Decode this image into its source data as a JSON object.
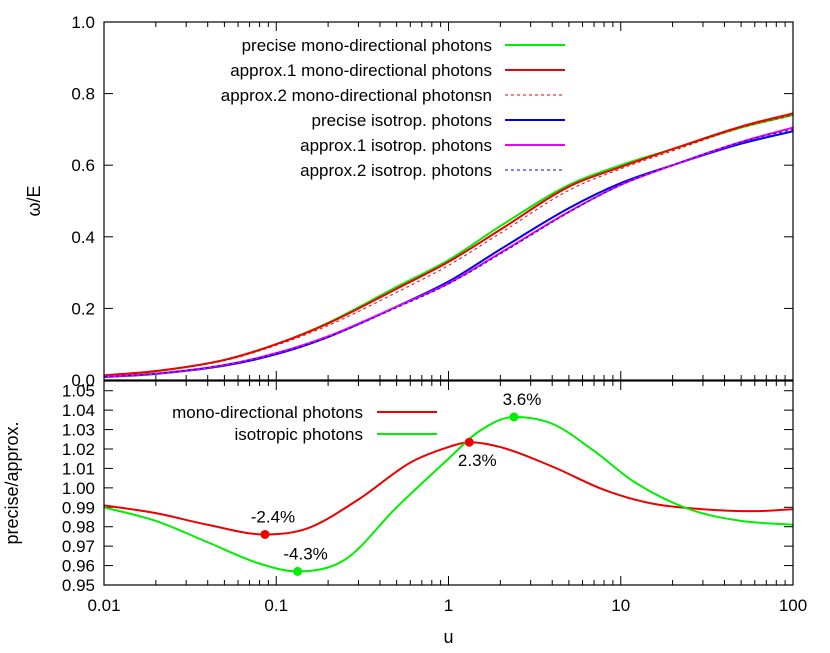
{
  "chart_data": [
    {
      "type": "line",
      "xscale": "log",
      "xlim": [
        0.01,
        100
      ],
      "ylim": [
        0.0,
        1.0
      ],
      "ylabel": "ω/E",
      "xlabel": "",
      "grid": false,
      "legend_placement": "top-left",
      "yticks": [
        "0.0",
        "0.2",
        "0.4",
        "0.6",
        "0.8",
        "1.0"
      ],
      "series": [
        {
          "name": "precise mono-directional photons",
          "color": "#00ee00",
          "dash": "solid",
          "x": [
            0.01,
            0.02,
            0.05,
            0.1,
            0.2,
            0.5,
            1,
            2,
            5,
            10,
            20,
            50,
            100
          ],
          "y": [
            0.012,
            0.024,
            0.056,
            0.1,
            0.16,
            0.26,
            0.335,
            0.43,
            0.545,
            0.6,
            0.645,
            0.705,
            0.74
          ]
        },
        {
          "name": "approx.1 mono-directional photons",
          "color": "#ee0000",
          "dash": "solid",
          "x": [
            0.01,
            0.02,
            0.05,
            0.1,
            0.2,
            0.5,
            1,
            2,
            5,
            10,
            20,
            50,
            100
          ],
          "y": [
            0.013,
            0.025,
            0.056,
            0.1,
            0.158,
            0.255,
            0.33,
            0.42,
            0.54,
            0.595,
            0.645,
            0.708,
            0.745
          ]
        },
        {
          "name": "approx.2 mono-directional photonsn",
          "color": "#ee0000",
          "dash": "dotted",
          "x": [
            0.01,
            0.02,
            0.05,
            0.1,
            0.2,
            0.5,
            1,
            2,
            5,
            10,
            20,
            50,
            100
          ],
          "y": [
            0.013,
            0.025,
            0.054,
            0.097,
            0.152,
            0.245,
            0.32,
            0.41,
            0.53,
            0.59,
            0.64,
            0.705,
            0.74
          ]
        },
        {
          "name": "precise isotrop. photons",
          "color": "#0000ee",
          "dash": "solid",
          "x": [
            0.01,
            0.02,
            0.05,
            0.1,
            0.2,
            0.5,
            1,
            2,
            5,
            10,
            20,
            50,
            100
          ],
          "y": [
            0.008,
            0.017,
            0.04,
            0.072,
            0.12,
            0.205,
            0.275,
            0.365,
            0.48,
            0.55,
            0.6,
            0.66,
            0.695
          ]
        },
        {
          "name": "approx.1 isotrop. photons",
          "color": "#ee00ee",
          "dash": "solid",
          "x": [
            0.01,
            0.02,
            0.05,
            0.1,
            0.2,
            0.5,
            1,
            2,
            5,
            10,
            20,
            50,
            100
          ],
          "y": [
            0.009,
            0.018,
            0.042,
            0.075,
            0.122,
            0.205,
            0.27,
            0.355,
            0.47,
            0.545,
            0.6,
            0.665,
            0.705
          ]
        },
        {
          "name": "approx.2 isotrop. photons",
          "color": "#0000ee",
          "dash": "dotted",
          "x": [
            0.01,
            0.02,
            0.05,
            0.1,
            0.2,
            0.5,
            1,
            2,
            5,
            10,
            20,
            50,
            100
          ],
          "y": [
            0.009,
            0.018,
            0.042,
            0.074,
            0.12,
            0.202,
            0.268,
            0.352,
            0.468,
            0.545,
            0.6,
            0.665,
            0.7
          ]
        }
      ]
    },
    {
      "type": "line",
      "xscale": "log",
      "xlim": [
        0.01,
        100
      ],
      "ylim": [
        0.95,
        1.055
      ],
      "xlabel": "u",
      "ylabel": "precise/approx.",
      "grid": false,
      "legend_placement": "top-left",
      "xticks": [
        "0.01",
        "0.1",
        "1",
        "10",
        "100"
      ],
      "yticks": [
        "0.95",
        "0.96",
        "0.97",
        "0.98",
        "0.99",
        "1.00",
        "1.01",
        "1.02",
        "1.03",
        "1.04",
        "1.05"
      ],
      "series": [
        {
          "name": "mono-directional photons",
          "color": "#ee0000",
          "dash": "solid",
          "x": [
            0.01,
            0.02,
            0.04,
            0.086,
            0.15,
            0.3,
            0.6,
            1.0,
            1.32,
            2.0,
            4.0,
            8.0,
            15,
            30,
            60,
            100
          ],
          "y": [
            0.991,
            0.987,
            0.981,
            0.976,
            0.979,
            0.994,
            1.013,
            1.021,
            1.0235,
            1.021,
            1.011,
            0.999,
            0.992,
            0.989,
            0.988,
            0.989
          ]
        },
        {
          "name": "isotropic photons",
          "color": "#00ee00",
          "dash": "solid",
          "x": [
            0.01,
            0.02,
            0.04,
            0.08,
            0.133,
            0.25,
            0.5,
            1.0,
            1.5,
            2.4,
            4.0,
            7.0,
            12,
            25,
            50,
            100
          ],
          "y": [
            0.99,
            0.983,
            0.972,
            0.961,
            0.957,
            0.963,
            0.99,
            1.015,
            1.029,
            1.0365,
            1.033,
            1.019,
            1.003,
            0.989,
            0.983,
            0.981
          ]
        }
      ],
      "annotations": [
        {
          "text": "-2.4%",
          "x": 0.086,
          "y": 0.976,
          "color": "#ee0000",
          "label_pos": "above"
        },
        {
          "text": "-4.3%",
          "x": 0.133,
          "y": 0.957,
          "color": "#00ee00",
          "label_pos": "above"
        },
        {
          "text": "2.3%",
          "x": 1.32,
          "y": 1.0235,
          "color": "#ee0000",
          "label_pos": "below"
        },
        {
          "text": "3.6%",
          "x": 2.4,
          "y": 1.0365,
          "color": "#00ee00",
          "label_pos": "above"
        }
      ]
    }
  ]
}
